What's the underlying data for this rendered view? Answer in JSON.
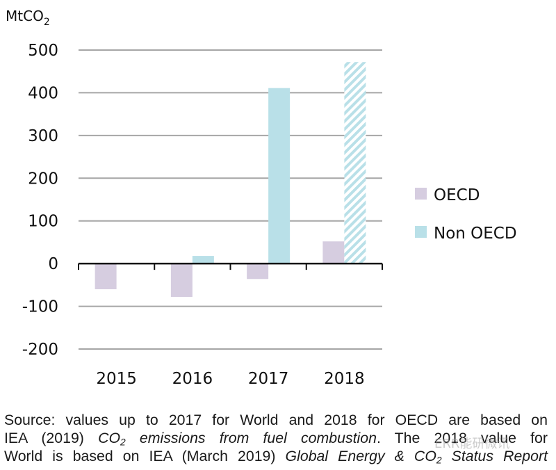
{
  "chart_data": {
    "type": "bar",
    "title": "",
    "ylabel": "MtCO2",
    "ylabel_main": "MtCO",
    "ylabel_sub": "2",
    "xlabel": "",
    "categories": [
      "2015",
      "2016",
      "2017",
      "2018"
    ],
    "series": [
      {
        "name": "OECD",
        "color": "#d6cde0",
        "values": [
          -60,
          -78,
          -36,
          52
        ]
      },
      {
        "name": "Non OECD",
        "color": "#b9e0e8",
        "values": [
          0,
          18,
          411,
          472
        ],
        "hatched_categories": [
          "2018"
        ]
      }
    ],
    "ylim": [
      -200,
      500
    ],
    "yticks": [
      -200,
      -100,
      0,
      100,
      200,
      300,
      400,
      500
    ],
    "ytick_labels": [
      "-200",
      "-100",
      "0",
      "100",
      "200",
      "300",
      "400",
      "500"
    ],
    "grid": true,
    "legend_position": "right"
  },
  "source_note": {
    "line1": "Source: values up to 2017 for World and 2018 for OECD are based on",
    "line2_a": "IEA (2019) ",
    "line2_b_italic_1": "CO",
    "line2_b_sub": "2",
    "line2_b_italic_2": " emissions from fuel combustion",
    "line2_c": ". The 2018 value for",
    "line3_a": "World is based on IEA (March 2019) ",
    "line3_b_italic_1": "Global Energy & CO",
    "line3_b_sub": "2",
    "line3_b_italic_2": " Status Report"
  },
  "watermark": "ERR能研微讯"
}
